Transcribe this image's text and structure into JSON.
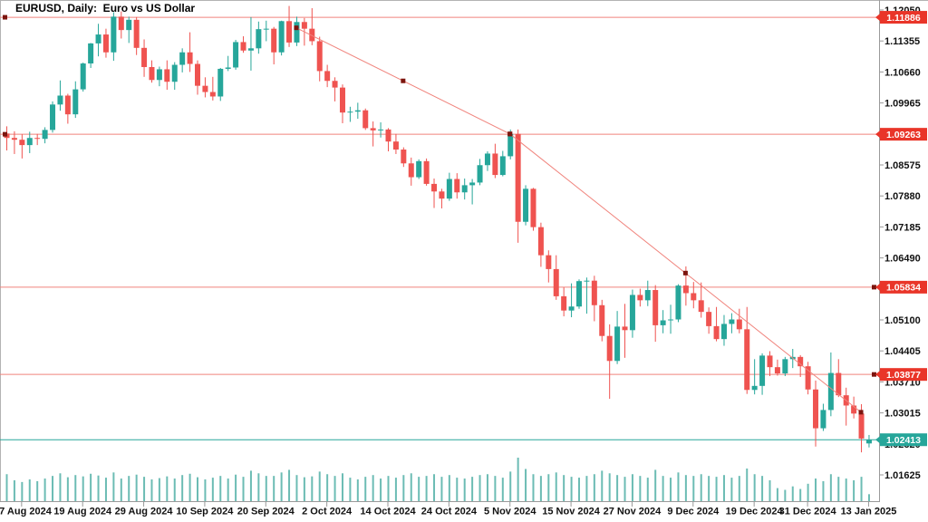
{
  "window": {
    "title": "EURUSD, Daily:  Euro vs US Dollar"
  },
  "colors": {
    "bull": "#26a69a",
    "bear": "#ef5350",
    "volume": "#6cbcb4",
    "level_line": "#f0837c",
    "level_box": "#e93529",
    "current": "#26a69a",
    "anchor": "#7c150e",
    "axis_line": "#9a9a9a",
    "axis_text": "#111111",
    "frame": "#b3b3b3",
    "background": "#ffffff"
  },
  "chart_data": {
    "type": "candlestick",
    "title": "EURUSD, Daily:  Euro vs US Dollar",
    "symbol": "EURUSD",
    "timeframe": "Daily",
    "ylim": [
      1.01625,
      1.1205
    ],
    "grid": "off",
    "y_ticks": [
      "1.12050",
      "1.11355",
      "1.10660",
      "1.09965",
      "1.09270",
      "1.08575",
      "1.07880",
      "1.07185",
      "1.06490",
      "1.05795",
      "1.05100",
      "1.04405",
      "1.03710",
      "1.03015",
      "1.02320",
      "1.01625"
    ],
    "x_ticks": [
      {
        "label": "7 Aug 2024",
        "bar_index": 2
      },
      {
        "label": "19 Aug 2024",
        "bar_index": 10
      },
      {
        "label": "29 Aug 2024",
        "bar_index": 18
      },
      {
        "label": "10 Sep 2024",
        "bar_index": 26
      },
      {
        "label": "20 Sep 2024",
        "bar_index": 34
      },
      {
        "label": "2 Oct 2024",
        "bar_index": 42
      },
      {
        "label": "14 Oct 2024",
        "bar_index": 50
      },
      {
        "label": "24 Oct 2024",
        "bar_index": 58
      },
      {
        "label": "5 Nov 2024",
        "bar_index": 66
      },
      {
        "label": "15 Nov 2024",
        "bar_index": 74
      },
      {
        "label": "27 Nov 2024",
        "bar_index": 82
      },
      {
        "label": "9 Dec 2024",
        "bar_index": 90
      },
      {
        "label": "19 Dec 2024",
        "bar_index": 98
      },
      {
        "label": "31 Dec 2024",
        "bar_index": 105
      },
      {
        "label": "13 Jan 2025",
        "bar_index": 113
      }
    ],
    "levels": [
      {
        "label": "1.11886",
        "price": 1.11886,
        "dot_side": "left"
      },
      {
        "label": "1.09263",
        "price": 1.09263,
        "dot_side": "left"
      },
      {
        "label": "1.05834",
        "price": 1.05834,
        "dot_side": "right"
      },
      {
        "label": "1.03877",
        "price": 1.03877,
        "dot_side": "right"
      }
    ],
    "current_price": {
      "label": "1.02413",
      "price": 1.02413
    },
    "trendlines": [
      {
        "from": {
          "bar": 38,
          "price": 1.1165
        },
        "to": {
          "bar": 66,
          "price": 1.0927
        }
      },
      {
        "from": {
          "bar": 66,
          "price": 1.0927
        },
        "to": {
          "bar": 112,
          "price": 1.0303
        }
      }
    ],
    "candles": [
      [
        1.0928,
        1.0944,
        1.089,
        1.0918
      ],
      [
        1.0918,
        1.0933,
        1.0882,
        1.0914
      ],
      [
        1.0914,
        1.0926,
        1.0872,
        1.0902
      ],
      [
        1.0902,
        1.0932,
        1.0884,
        1.0918
      ],
      [
        1.0918,
        1.0927,
        1.0902,
        1.0916
      ],
      [
        1.0916,
        1.0942,
        1.0906,
        1.0936
      ],
      [
        1.0936,
        1.1,
        1.093,
        1.0993
      ],
      [
        1.0993,
        1.1047,
        1.0979,
        1.1013
      ],
      [
        1.1013,
        1.1017,
        1.095,
        1.0971
      ],
      [
        1.0971,
        1.1045,
        1.0963,
        1.1027
      ],
      [
        1.1027,
        1.1087,
        1.1022,
        1.1085
      ],
      [
        1.1085,
        1.1131,
        1.1075,
        1.113
      ],
      [
        1.113,
        1.1174,
        1.1101,
        1.115
      ],
      [
        1.115,
        1.1163,
        1.1098,
        1.111
      ],
      [
        1.111,
        1.12,
        1.1091,
        1.119
      ],
      [
        1.119,
        1.1202,
        1.1141,
        1.116
      ],
      [
        1.116,
        1.119,
        1.1131,
        1.1183
      ],
      [
        1.1183,
        1.1189,
        1.1104,
        1.112
      ],
      [
        1.112,
        1.1139,
        1.1055,
        1.1077
      ],
      [
        1.1077,
        1.1092,
        1.1042,
        1.1048
      ],
      [
        1.1048,
        1.1078,
        1.1034,
        1.1072
      ],
      [
        1.1072,
        1.1092,
        1.1026,
        1.1044
      ],
      [
        1.1044,
        1.1088,
        1.1026,
        1.1082
      ],
      [
        1.1082,
        1.1119,
        1.1065,
        1.111
      ],
      [
        1.111,
        1.1155,
        1.1066,
        1.1084
      ],
      [
        1.1084,
        1.1092,
        1.1015,
        1.1035
      ],
      [
        1.1035,
        1.1054,
        1.1009,
        1.1021
      ],
      [
        1.1021,
        1.1055,
        1.1002,
        1.1011
      ],
      [
        1.1011,
        1.1075,
        1.1001,
        1.1073
      ],
      [
        1.1073,
        1.1102,
        1.1068,
        1.1076
      ],
      [
        1.1076,
        1.1138,
        1.1071,
        1.1133
      ],
      [
        1.1133,
        1.1146,
        1.1109,
        1.1114
      ],
      [
        1.1114,
        1.1189,
        1.1069,
        1.1119
      ],
      [
        1.1119,
        1.1179,
        1.1107,
        1.1162
      ],
      [
        1.1162,
        1.1181,
        1.1135,
        1.1163
      ],
      [
        1.1163,
        1.1167,
        1.1083,
        1.111
      ],
      [
        1.111,
        1.1181,
        1.1103,
        1.118
      ],
      [
        1.118,
        1.1214,
        1.1122,
        1.1132
      ],
      [
        1.1132,
        1.119,
        1.1124,
        1.1178
      ],
      [
        1.1178,
        1.1187,
        1.1125,
        1.1163
      ],
      [
        1.1163,
        1.1209,
        1.1126,
        1.1135
      ],
      [
        1.1135,
        1.1145,
        1.1045,
        1.1068
      ],
      [
        1.1068,
        1.1082,
        1.1032,
        1.1046
      ],
      [
        1.1046,
        1.1054,
        1.1,
        1.1031
      ],
      [
        1.1031,
        1.1038,
        1.0951,
        1.0975
      ],
      [
        1.0975,
        1.0988,
        1.0954,
        1.0977
      ],
      [
        1.0977,
        1.0997,
        1.0961,
        1.098
      ],
      [
        1.098,
        1.0984,
        1.0936,
        1.094
      ],
      [
        1.094,
        1.0955,
        1.0899,
        1.0935
      ],
      [
        1.0935,
        1.0953,
        1.0919,
        1.0937
      ],
      [
        1.0937,
        1.094,
        1.0888,
        1.091
      ],
      [
        1.091,
        1.0927,
        1.0882,
        1.0892
      ],
      [
        1.0892,
        1.0897,
        1.0853,
        1.0861
      ],
      [
        1.0861,
        1.0874,
        1.0811,
        1.083
      ],
      [
        1.083,
        1.087,
        1.0826,
        1.0866
      ],
      [
        1.0866,
        1.0872,
        1.0811,
        1.0815
      ],
      [
        1.0815,
        1.0827,
        1.0761,
        1.0798
      ],
      [
        1.0798,
        1.0804,
        1.076,
        1.0782
      ],
      [
        1.0782,
        1.084,
        1.0777,
        1.0826
      ],
      [
        1.0826,
        1.0839,
        1.0782,
        1.0796
      ],
      [
        1.0796,
        1.0827,
        1.078,
        1.0812
      ],
      [
        1.0812,
        1.0826,
        1.0769,
        1.0818
      ],
      [
        1.0818,
        1.0871,
        1.0812,
        1.0857
      ],
      [
        1.0857,
        1.0888,
        1.0844,
        1.0883
      ],
      [
        1.0883,
        1.0905,
        1.0828,
        1.0835
      ],
      [
        1.0835,
        1.0889,
        1.0832,
        1.0877
      ],
      [
        1.0877,
        1.0937,
        1.087,
        1.0927
      ],
      [
        1.0927,
        1.0937,
        1.0683,
        1.073
      ],
      [
        1.073,
        1.0812,
        1.0722,
        1.0804
      ],
      [
        1.0804,
        1.0806,
        1.071,
        1.0718
      ],
      [
        1.0718,
        1.0728,
        1.0629,
        1.0655
      ],
      [
        1.0655,
        1.0666,
        1.0594,
        1.0624
      ],
      [
        1.0624,
        1.0655,
        1.0555,
        1.0563
      ],
      [
        1.0563,
        1.0583,
        1.0518,
        1.0531
      ],
      [
        1.0531,
        1.0592,
        1.0516,
        1.054
      ],
      [
        1.054,
        1.0601,
        1.0535,
        1.0597
      ],
      [
        1.0597,
        1.0605,
        1.0524,
        1.0598
      ],
      [
        1.0598,
        1.0609,
        1.0507,
        1.0543
      ],
      [
        1.0543,
        1.0555,
        1.0462,
        1.0474
      ],
      [
        1.0474,
        1.05,
        1.0333,
        1.0418
      ],
      [
        1.0418,
        1.053,
        1.0411,
        1.0495
      ],
      [
        1.0495,
        1.0546,
        1.0425,
        1.0487
      ],
      [
        1.0487,
        1.0578,
        1.047,
        1.0566
      ],
      [
        1.0566,
        1.058,
        1.054,
        1.0554
      ],
      [
        1.0554,
        1.0598,
        1.0541,
        1.0577
      ],
      [
        1.0577,
        1.0588,
        1.0461,
        1.0498
      ],
      [
        1.0498,
        1.0532,
        1.048,
        1.0509
      ],
      [
        1.0509,
        1.0544,
        1.0479,
        1.0511
      ],
      [
        1.0511,
        1.059,
        1.0505,
        1.0587
      ],
      [
        1.0587,
        1.063,
        1.0542,
        1.057
      ],
      [
        1.057,
        1.0595,
        1.0536,
        1.0554
      ],
      [
        1.0554,
        1.0594,
        1.0515,
        1.0528
      ],
      [
        1.0528,
        1.0538,
        1.0479,
        1.0496
      ],
      [
        1.0496,
        1.0539,
        1.0462,
        1.0467
      ],
      [
        1.0467,
        1.0521,
        1.0452,
        1.0501
      ],
      [
        1.0501,
        1.0525,
        1.048,
        1.0511
      ],
      [
        1.0511,
        1.0535,
        1.048,
        1.0489
      ],
      [
        1.0489,
        1.0539,
        1.0344,
        1.0353
      ],
      [
        1.0353,
        1.0422,
        1.0343,
        1.0362
      ],
      [
        1.0362,
        1.0435,
        1.0342,
        1.043
      ],
      [
        1.043,
        1.044,
        1.0384,
        1.0404
      ],
      [
        1.0404,
        1.0421,
        1.0385,
        1.039
      ],
      [
        1.039,
        1.0427,
        1.0384,
        1.0422
      ],
      [
        1.0422,
        1.0445,
        1.0402,
        1.0427
      ],
      [
        1.0427,
        1.0431,
        1.0382,
        1.0406
      ],
      [
        1.0406,
        1.0416,
        1.0343,
        1.0354
      ],
      [
        1.0354,
        1.0374,
        1.0226,
        1.0267
      ],
      [
        1.0267,
        1.0322,
        1.0261,
        1.0308
      ],
      [
        1.0308,
        1.0437,
        1.0294,
        1.0391
      ],
      [
        1.0391,
        1.0422,
        1.0337,
        1.0341
      ],
      [
        1.0341,
        1.0358,
        1.0273,
        1.0318
      ],
      [
        1.0318,
        1.0338,
        1.0289,
        1.03
      ],
      [
        1.03,
        1.0321,
        1.0213,
        1.0244
      ],
      [
        1.0233,
        1.0252,
        1.0224,
        1.0241
      ]
    ],
    "tick_volume": [
      62,
      48,
      44,
      50,
      46,
      52,
      58,
      64,
      55,
      60,
      57,
      63,
      59,
      54,
      66,
      52,
      58,
      61,
      56,
      50,
      53,
      57,
      52,
      60,
      63,
      55,
      50,
      54,
      58,
      52,
      61,
      56,
      70,
      64,
      58,
      58,
      66,
      72,
      60,
      55,
      57,
      68,
      62,
      58,
      64,
      54,
      50,
      56,
      60,
      52,
      58,
      54,
      60,
      64,
      56,
      58,
      62,
      56,
      60,
      54,
      52,
      56,
      60,
      62,
      58,
      54,
      68,
      100,
      74,
      62,
      58,
      62,
      66,
      60,
      56,
      54,
      58,
      62,
      70,
      64,
      60,
      56,
      62,
      58,
      54,
      72,
      58,
      54,
      66,
      60,
      58,
      62,
      58,
      56,
      60,
      54,
      58,
      75,
      62,
      58,
      48,
      30,
      26,
      34,
      28,
      40,
      52,
      46,
      62,
      56,
      52,
      48,
      56,
      16
    ]
  }
}
